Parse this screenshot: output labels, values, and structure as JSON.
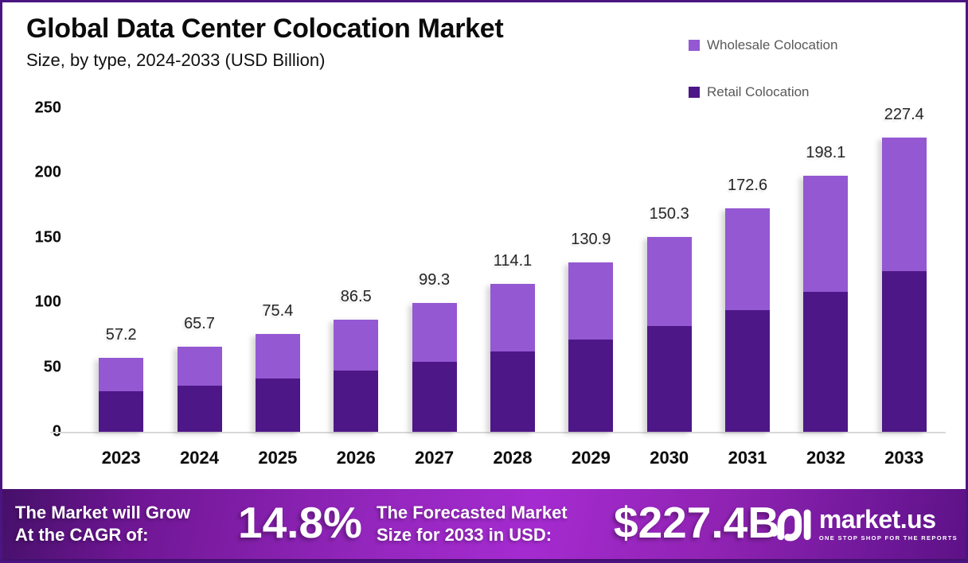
{
  "header": {
    "title": "Global Data Center Colocation Market",
    "subtitle": "Size, by type, 2024-2033 (USD Billion)"
  },
  "legend": {
    "items": [
      {
        "label": "Wholesale Colocation",
        "color": "#9458D2"
      },
      {
        "label": "Retail Colocation",
        "color": "#4D1787"
      }
    ]
  },
  "chart_data": {
    "type": "bar",
    "stacked": true,
    "title": "Global Data Center Colocation Market",
    "subtitle": "Size, by type, 2024-2033 (USD Billion)",
    "categories": [
      "2023",
      "2024",
      "2025",
      "2026",
      "2027",
      "2028",
      "2029",
      "2030",
      "2031",
      "2032",
      "2033"
    ],
    "series": [
      {
        "name": "Retail Colocation",
        "color": "#4D1787",
        "values": [
          31.1,
          35.7,
          41.0,
          47.0,
          54.0,
          62.1,
          71.2,
          81.8,
          94.0,
          107.9,
          123.8
        ]
      },
      {
        "name": "Wholesale Colocation",
        "color": "#9458D2",
        "values": [
          26.1,
          30.0,
          34.4,
          39.5,
          45.3,
          52.0,
          59.7,
          68.5,
          78.6,
          90.2,
          103.6
        ]
      }
    ],
    "totals": [
      57.2,
      65.7,
      75.4,
      86.5,
      99.3,
      114.1,
      130.9,
      150.3,
      172.6,
      198.1,
      227.4
    ],
    "total_labels": [
      "57.2",
      "65.7",
      "75.4",
      "86.5",
      "99.3",
      "114.1",
      "130.9",
      "150.3",
      "172.6",
      "198.1",
      "227.4"
    ],
    "xlabel": "",
    "ylabel": "",
    "ylim": [
      0,
      250
    ],
    "yticks": [
      0,
      50,
      100,
      150,
      200,
      250
    ],
    "grid": false,
    "legend_position": "top-right"
  },
  "banner": {
    "left_line1": "The Market will Grow",
    "left_line2": "At the CAGR of:",
    "cagr_value": "14.8%",
    "right_line1": "The Forecasted Market",
    "right_line2": "Size for 2033 in USD:",
    "forecast_value": "$227.4B",
    "brand_name": "market.us",
    "brand_tagline": "ONE STOP SHOP FOR THE REPORTS"
  },
  "colors": {
    "frame_border": "#4A1581",
    "wholesale": "#9458D2",
    "retail": "#4D1787",
    "baseline": "#d9d9d9",
    "banner_gradient_start": "#451069",
    "banner_gradient_mid": "#A52BD0",
    "banner_gradient_end": "#5D1286"
  }
}
